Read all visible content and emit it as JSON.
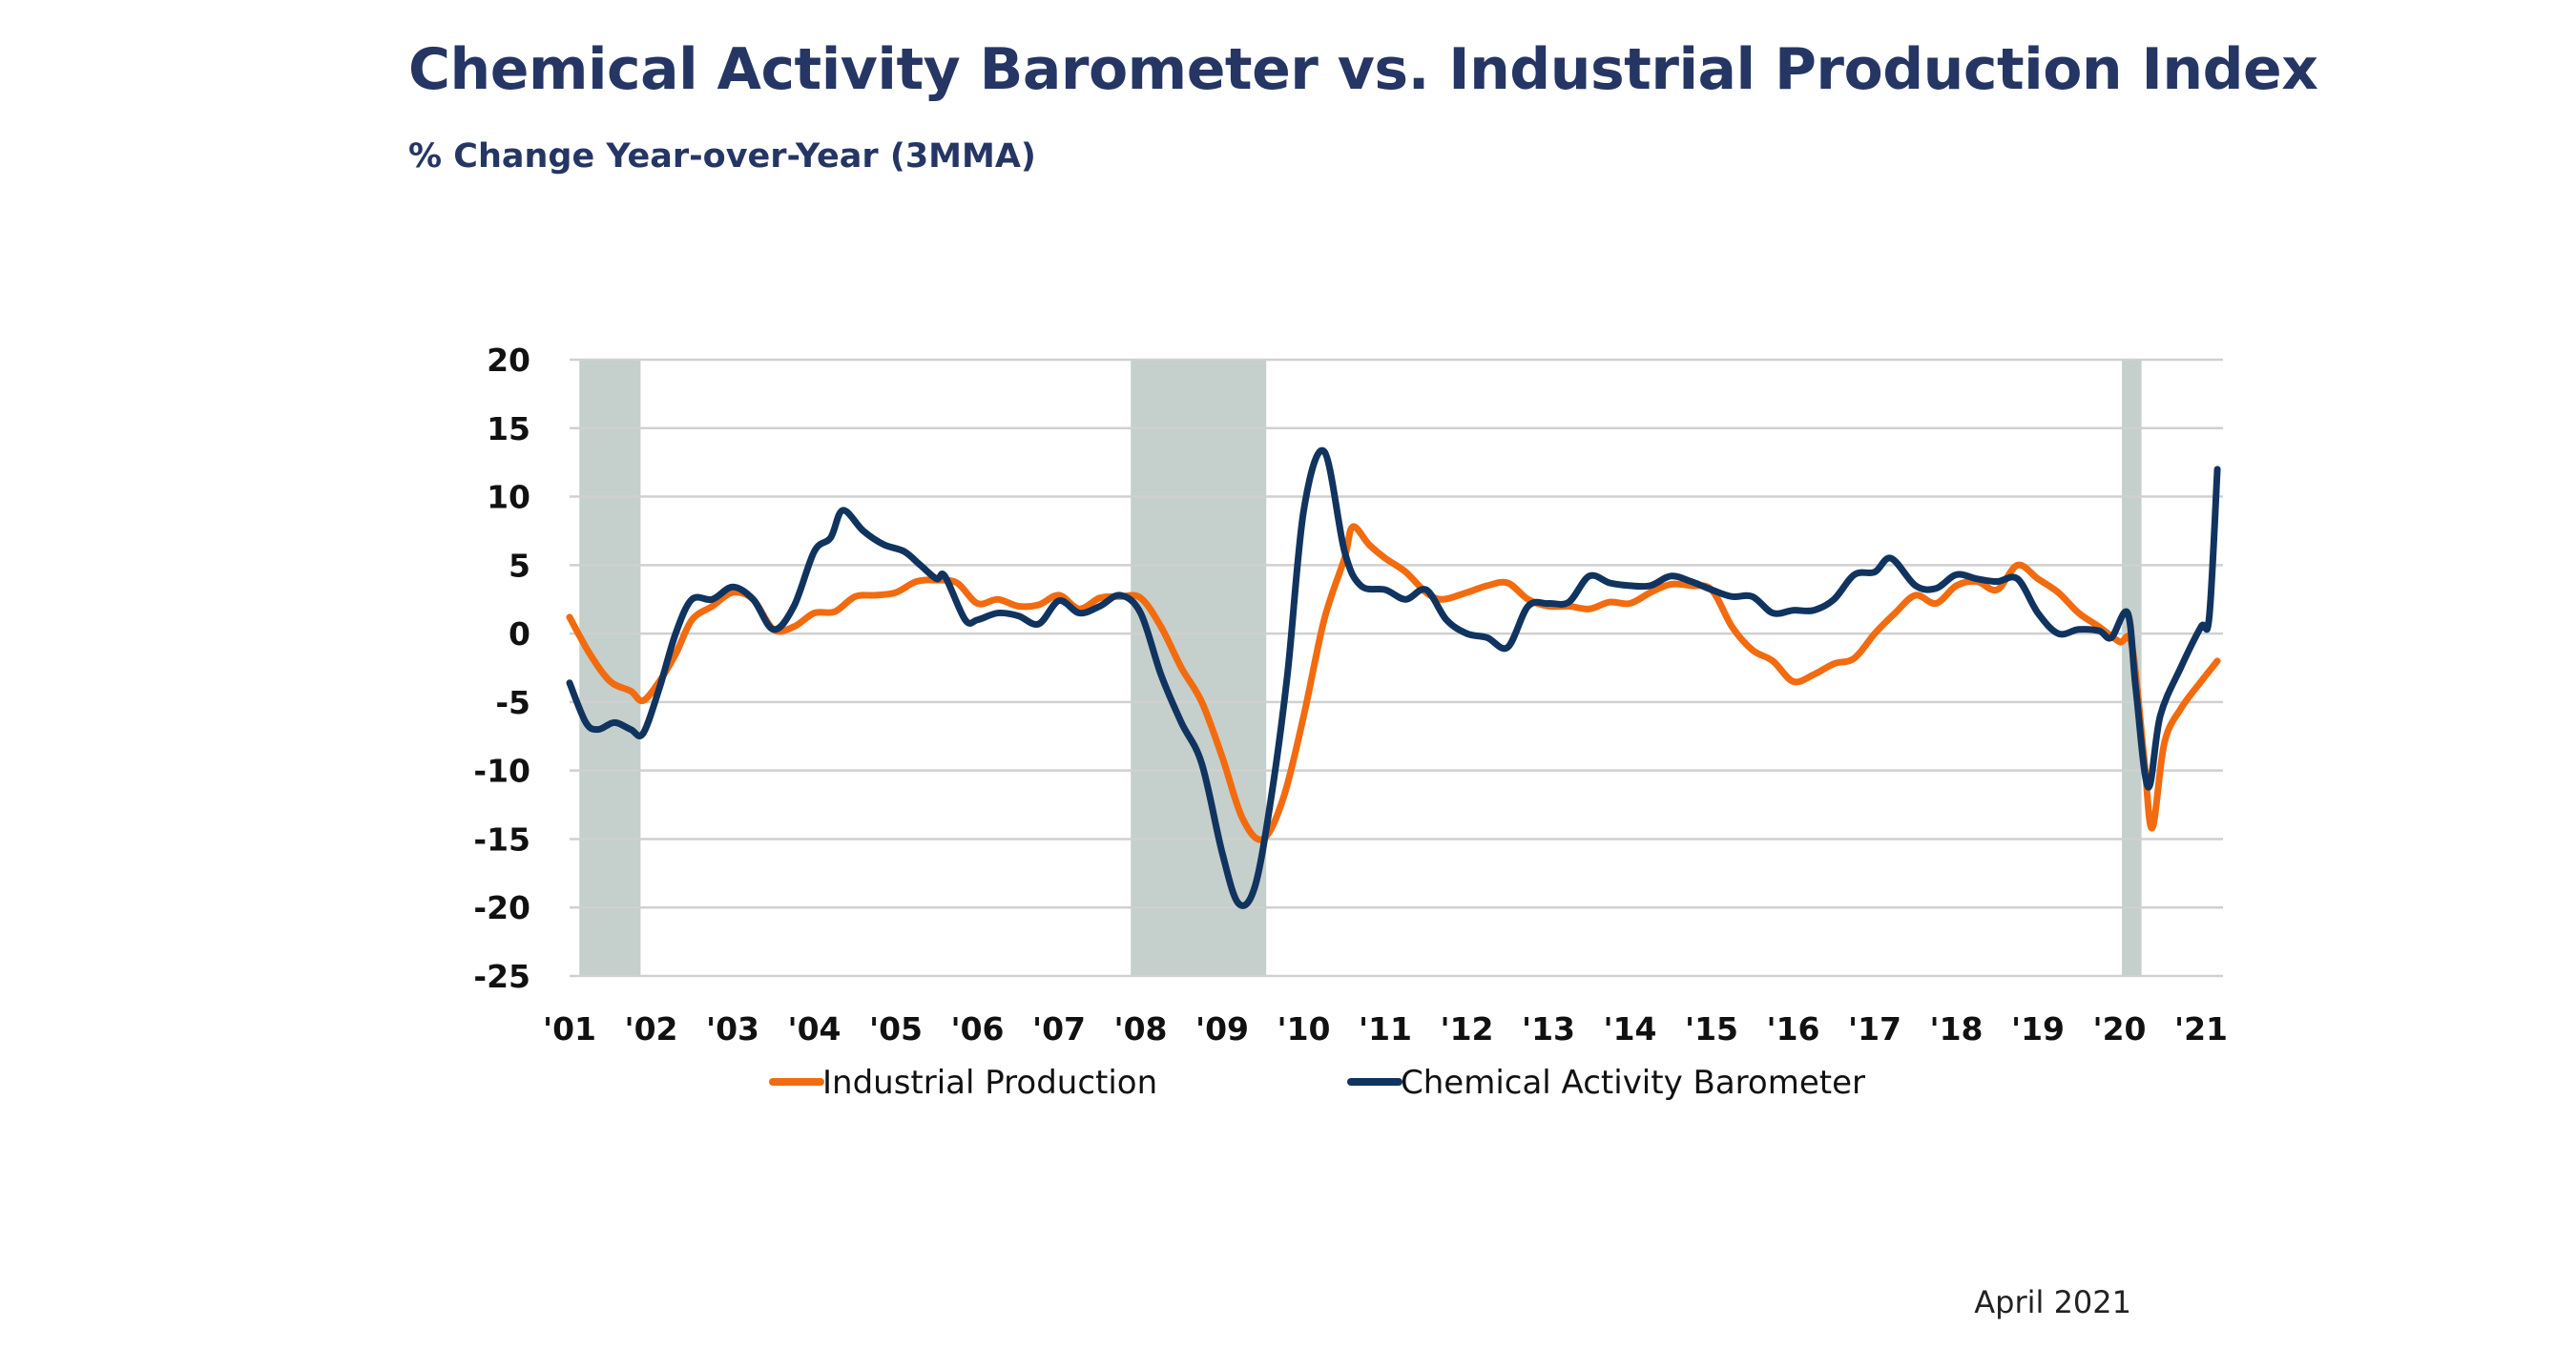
{
  "chart_data": {
    "type": "line",
    "title": "Chemical Activity Barometer vs. Industrial Production Index",
    "subtitle": "% Change Year-over-Year (3MMA)",
    "note": "April 2021",
    "xlim": [
      2001,
      2021.25
    ],
    "ylim": [
      -25,
      20
    ],
    "y_ticks": [
      20,
      15,
      10,
      5,
      0,
      -5,
      -10,
      -15,
      -20,
      -25
    ],
    "x_ticks": [
      {
        "year": 2001,
        "label": "'01"
      },
      {
        "year": 2002,
        "label": "'02"
      },
      {
        "year": 2003,
        "label": "'03"
      },
      {
        "year": 2004,
        "label": "'04"
      },
      {
        "year": 2005,
        "label": "'05"
      },
      {
        "year": 2006,
        "label": "'06"
      },
      {
        "year": 2007,
        "label": "'07"
      },
      {
        "year": 2008,
        "label": "'08"
      },
      {
        "year": 2009,
        "label": "'09"
      },
      {
        "year": 2010,
        "label": "'10"
      },
      {
        "year": 2011,
        "label": "'11"
      },
      {
        "year": 2012,
        "label": "'12"
      },
      {
        "year": 2013,
        "label": "'13"
      },
      {
        "year": 2014,
        "label": "'14"
      },
      {
        "year": 2015,
        "label": "'15"
      },
      {
        "year": 2016,
        "label": "'16"
      },
      {
        "year": 2017,
        "label": "'17"
      },
      {
        "year": 2018,
        "label": "'18"
      },
      {
        "year": 2019,
        "label": "'19"
      },
      {
        "year": 2020,
        "label": "'20"
      },
      {
        "year": 2021,
        "label": "'21"
      }
    ],
    "grid": "horizontal",
    "legend_position": "bottom",
    "shaded_periods": [
      [
        2001.12,
        2001.87
      ],
      [
        2007.88,
        2009.54
      ],
      [
        2020.03,
        2020.27
      ]
    ],
    "shade_color": "#c5cfcb",
    "series": [
      {
        "name": "Industrial Production",
        "color": "#f26b0f",
        "points": [
          [
            2001.0,
            1.2
          ],
          [
            2001.25,
            -1.5
          ],
          [
            2001.5,
            -3.5
          ],
          [
            2001.75,
            -4.2
          ],
          [
            2001.9,
            -4.9
          ],
          [
            2002.1,
            -3.5
          ],
          [
            2002.3,
            -1.5
          ],
          [
            2002.5,
            1
          ],
          [
            2002.75,
            2
          ],
          [
            2003.0,
            3
          ],
          [
            2003.25,
            2.5
          ],
          [
            2003.5,
            0.3
          ],
          [
            2003.75,
            0.5
          ],
          [
            2004.0,
            1.5
          ],
          [
            2004.25,
            1.6
          ],
          [
            2004.5,
            2.7
          ],
          [
            2004.75,
            2.8
          ],
          [
            2005.0,
            3
          ],
          [
            2005.25,
            3.8
          ],
          [
            2005.5,
            3.9
          ],
          [
            2005.75,
            3.7
          ],
          [
            2006.0,
            2.2
          ],
          [
            2006.25,
            2.5
          ],
          [
            2006.5,
            2
          ],
          [
            2006.75,
            2.1
          ],
          [
            2007.0,
            2.8
          ],
          [
            2007.25,
            1.8
          ],
          [
            2007.5,
            2.6
          ],
          [
            2007.75,
            2.7
          ],
          [
            2008.0,
            2.6
          ],
          [
            2008.25,
            0.5
          ],
          [
            2008.5,
            -2.5
          ],
          [
            2008.75,
            -5
          ],
          [
            2009.0,
            -9
          ],
          [
            2009.25,
            -13.5
          ],
          [
            2009.5,
            -15
          ],
          [
            2009.75,
            -12
          ],
          [
            2010.0,
            -6
          ],
          [
            2010.25,
            1
          ],
          [
            2010.5,
            5.5
          ],
          [
            2010.6,
            7.8
          ],
          [
            2010.8,
            6.5
          ],
          [
            2011.0,
            5.5
          ],
          [
            2011.25,
            4.5
          ],
          [
            2011.5,
            3
          ],
          [
            2011.7,
            2.5
          ],
          [
            2012.0,
            3
          ],
          [
            2012.25,
            3.5
          ],
          [
            2012.5,
            3.7
          ],
          [
            2012.75,
            2.5
          ],
          [
            2013.0,
            2
          ],
          [
            2013.25,
            2
          ],
          [
            2013.5,
            1.8
          ],
          [
            2013.75,
            2.3
          ],
          [
            2014.0,
            2.2
          ],
          [
            2014.25,
            3
          ],
          [
            2014.5,
            3.6
          ],
          [
            2014.75,
            3.5
          ],
          [
            2015.0,
            3.2
          ],
          [
            2015.25,
            0.5
          ],
          [
            2015.5,
            -1.2
          ],
          [
            2015.75,
            -2
          ],
          [
            2016.0,
            -3.5
          ],
          [
            2016.25,
            -3
          ],
          [
            2016.5,
            -2.2
          ],
          [
            2016.75,
            -1.8
          ],
          [
            2017.0,
            0
          ],
          [
            2017.25,
            1.5
          ],
          [
            2017.5,
            2.8
          ],
          [
            2017.75,
            2.2
          ],
          [
            2018.0,
            3.5
          ],
          [
            2018.25,
            3.8
          ],
          [
            2018.5,
            3.2
          ],
          [
            2018.75,
            5
          ],
          [
            2019.0,
            4
          ],
          [
            2019.25,
            3
          ],
          [
            2019.5,
            1.5
          ],
          [
            2019.75,
            0.5
          ],
          [
            2020.0,
            -0.6
          ],
          [
            2020.15,
            -0.8
          ],
          [
            2020.3,
            -9
          ],
          [
            2020.4,
            -14.2
          ],
          [
            2020.55,
            -8
          ],
          [
            2020.75,
            -5.5
          ],
          [
            2021.0,
            -3.5
          ],
          [
            2021.2,
            -2.0
          ]
        ]
      },
      {
        "name": "Chemical Activity Barometer",
        "color": "#10345f",
        "points": [
          [
            2001.0,
            -3.6
          ],
          [
            2001.2,
            -6.5
          ],
          [
            2001.35,
            -7
          ],
          [
            2001.55,
            -6.5
          ],
          [
            2001.75,
            -7
          ],
          [
            2001.9,
            -7.3
          ],
          [
            2002.1,
            -4
          ],
          [
            2002.3,
            0
          ],
          [
            2002.5,
            2.5
          ],
          [
            2002.75,
            2.5
          ],
          [
            2003.0,
            3.4
          ],
          [
            2003.25,
            2.5
          ],
          [
            2003.5,
            0.3
          ],
          [
            2003.75,
            2
          ],
          [
            2004.0,
            6
          ],
          [
            2004.2,
            7
          ],
          [
            2004.35,
            9
          ],
          [
            2004.6,
            7.5
          ],
          [
            2004.85,
            6.5
          ],
          [
            2005.1,
            6
          ],
          [
            2005.3,
            5
          ],
          [
            2005.5,
            4
          ],
          [
            2005.6,
            4.2
          ],
          [
            2005.85,
            1
          ],
          [
            2006.0,
            1
          ],
          [
            2006.25,
            1.5
          ],
          [
            2006.5,
            1.3
          ],
          [
            2006.75,
            0.7
          ],
          [
            2007.0,
            2.4
          ],
          [
            2007.25,
            1.5
          ],
          [
            2007.5,
            2
          ],
          [
            2007.75,
            2.8
          ],
          [
            2008.0,
            1.5
          ],
          [
            2008.25,
            -3
          ],
          [
            2008.5,
            -6.5
          ],
          [
            2008.75,
            -9.5
          ],
          [
            2009.0,
            -16
          ],
          [
            2009.2,
            -19.7
          ],
          [
            2009.4,
            -18.5
          ],
          [
            2009.6,
            -12
          ],
          [
            2009.8,
            -3
          ],
          [
            2010.0,
            9
          ],
          [
            2010.25,
            13.3
          ],
          [
            2010.5,
            6
          ],
          [
            2010.7,
            3.5
          ],
          [
            2011.0,
            3.2
          ],
          [
            2011.25,
            2.5
          ],
          [
            2011.5,
            3.2
          ],
          [
            2011.75,
            1
          ],
          [
            2012.0,
            0
          ],
          [
            2012.25,
            -0.3
          ],
          [
            2012.5,
            -1
          ],
          [
            2012.75,
            2
          ],
          [
            2013.0,
            2.2
          ],
          [
            2013.25,
            2.3
          ],
          [
            2013.5,
            4.2
          ],
          [
            2013.75,
            3.7
          ],
          [
            2014.0,
            3.5
          ],
          [
            2014.25,
            3.5
          ],
          [
            2014.5,
            4.2
          ],
          [
            2014.75,
            3.8
          ],
          [
            2015.0,
            3.2
          ],
          [
            2015.25,
            2.7
          ],
          [
            2015.5,
            2.7
          ],
          [
            2015.75,
            1.5
          ],
          [
            2016.0,
            1.7
          ],
          [
            2016.25,
            1.7
          ],
          [
            2016.5,
            2.5
          ],
          [
            2016.75,
            4.3
          ],
          [
            2017.0,
            4.5
          ],
          [
            2017.2,
            5.5
          ],
          [
            2017.5,
            3.5
          ],
          [
            2017.75,
            3.3
          ],
          [
            2018.0,
            4.3
          ],
          [
            2018.25,
            4
          ],
          [
            2018.5,
            3.8
          ],
          [
            2018.75,
            4
          ],
          [
            2019.0,
            1.5
          ],
          [
            2019.25,
            0
          ],
          [
            2019.5,
            0.3
          ],
          [
            2019.75,
            0.2
          ],
          [
            2019.9,
            -0.3
          ],
          [
            2020.1,
            1.5
          ],
          [
            2020.2,
            -4
          ],
          [
            2020.35,
            -11.2
          ],
          [
            2020.5,
            -6
          ],
          [
            2020.75,
            -2.5
          ],
          [
            2021.0,
            0.5
          ],
          [
            2021.1,
            1.2
          ],
          [
            2021.2,
            12
          ]
        ]
      }
    ]
  }
}
